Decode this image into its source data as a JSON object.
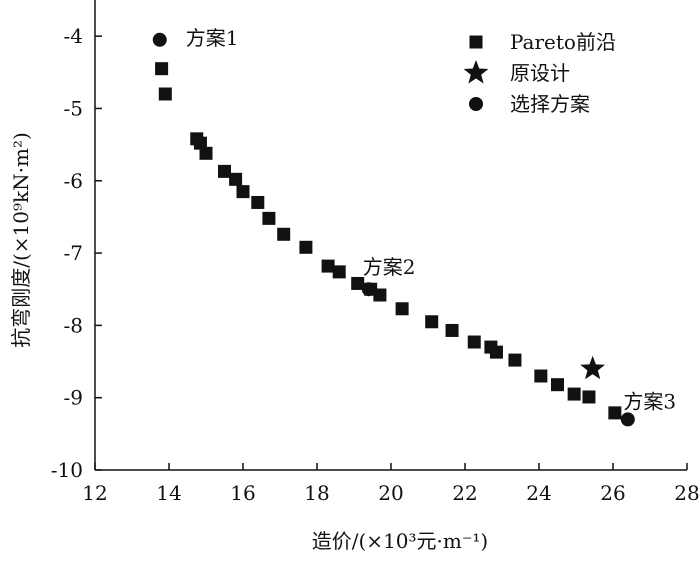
{
  "chart_data": {
    "type": "scatter",
    "xlabel": "造价/(×10³元·m⁻¹)",
    "ylabel": "抗弯刚度/(×10⁹kN·m²)",
    "xlim": [
      12,
      28
    ],
    "ylim": [
      -10,
      -3.5
    ],
    "xticks": [
      12,
      14,
      16,
      18,
      20,
      22,
      24,
      26,
      28
    ],
    "yticks": [
      -10,
      -9,
      -8,
      -7,
      -6,
      -5,
      -4
    ],
    "legend_position": "top-right",
    "grid": false,
    "series": [
      {
        "name": "Pareto前沿",
        "marker": "square",
        "color": "#111111",
        "points": [
          [
            13.8,
            -4.45
          ],
          [
            13.9,
            -4.8
          ],
          [
            14.75,
            -5.42
          ],
          [
            14.85,
            -5.48
          ],
          [
            15.0,
            -5.62
          ],
          [
            15.5,
            -5.87
          ],
          [
            15.8,
            -5.98
          ],
          [
            16.0,
            -6.15
          ],
          [
            16.4,
            -6.3
          ],
          [
            16.7,
            -6.52
          ],
          [
            17.1,
            -6.74
          ],
          [
            17.7,
            -6.92
          ],
          [
            18.3,
            -7.18
          ],
          [
            18.6,
            -7.26
          ],
          [
            19.1,
            -7.42
          ],
          [
            19.45,
            -7.5
          ],
          [
            19.7,
            -7.58
          ],
          [
            20.3,
            -7.77
          ],
          [
            21.1,
            -7.95
          ],
          [
            21.65,
            -8.07
          ],
          [
            22.25,
            -8.23
          ],
          [
            22.7,
            -8.3
          ],
          [
            22.85,
            -8.37
          ],
          [
            23.35,
            -8.48
          ],
          [
            24.05,
            -8.7
          ],
          [
            24.5,
            -8.82
          ],
          [
            24.95,
            -8.95
          ],
          [
            25.35,
            -8.99
          ],
          [
            26.05,
            -9.21
          ]
        ]
      },
      {
        "name": "原设计",
        "marker": "star",
        "color": "#111111",
        "points": [
          [
            25.45,
            -8.6
          ]
        ]
      },
      {
        "name": "选择方案",
        "marker": "circle",
        "color": "#111111",
        "points": [
          [
            13.75,
            -4.05
          ],
          [
            19.4,
            -7.5
          ],
          [
            26.4,
            -9.3
          ]
        ]
      }
    ],
    "annotations": [
      {
        "text": "方案1",
        "x": 13.75,
        "y": -4.05
      },
      {
        "text": "方案2",
        "x": 19.4,
        "y": -7.5
      },
      {
        "text": "方案3",
        "x": 26.4,
        "y": -9.3
      }
    ]
  }
}
